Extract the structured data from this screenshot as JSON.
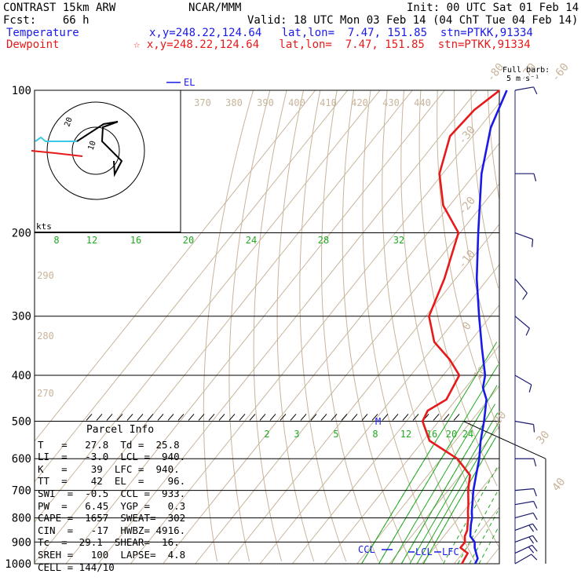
{
  "header": {
    "line1_left": "CONTRAST 15km ARW",
    "line1_center": "NCAR/MMM",
    "line1_right": "Init: 00 UTC Sat 01 Feb 14",
    "line2_left": "Fcst:    66 h",
    "line2_right": "Valid: 18 UTC Mon 03 Feb 14 (04 ChT Tue 04 Feb 14)",
    "temp_label": "Temperature",
    "temp_loc": "x,y=248.22,124.64   lat,lon=  7.47, 151.85  stn=PTKK,91334",
    "dew_label": "Dewpoint",
    "dew_loc": "☆ x,y=248.22,124.64   lat,lon=  7.47, 151.85  stn=PTKK,91334"
  },
  "barb_legend": {
    "line1": "Full barb:",
    "line2": "5 m s⁻¹"
  },
  "hodograph": {
    "units_label": "kts"
  },
  "markers": {
    "el": "EL",
    "m": "M",
    "ccl": "CCL",
    "lcl": "LCL",
    "lfc": "LFC"
  },
  "parcel_info": {
    "title": "Parcel Info",
    "rows": [
      "T   =   27.8  Td =  25.8",
      "LI  =   -3.0  LCL =  940.",
      "K   =    39  LFC =  940.",
      "TT  =    42  EL  =    96.",
      "SWI  =  -0.5  CCL =  933.",
      "PW  =   6.45  YGP =   0.3",
      "CAPE =  1657  SWEAT=  302",
      "CIN  =   -17  HWBZ= 4916.",
      "Tc  =  29.1  SHEAR=  16.",
      "SREH =   100  LAPSE=  4.8",
      "CELL = 144/10"
    ]
  },
  "chart_data": {
    "type": "line",
    "title": "",
    "y_axis": {
      "label": "",
      "scale": "log",
      "range_hPa": [
        1000,
        100
      ],
      "ticks": [
        100,
        200,
        300,
        400,
        500,
        600,
        700,
        800,
        900,
        1000
      ]
    },
    "x_axis": {
      "label": "",
      "skewed_isotherm_labels_C": [
        -80,
        -70,
        -60,
        -50,
        -40,
        -30,
        -20,
        -10,
        0,
        10,
        20,
        30,
        40
      ]
    },
    "dry_adiabat_labels_K": [
      270,
      280,
      290,
      370,
      380,
      390,
      400,
      410,
      420,
      430,
      440
    ],
    "mixing_ratio_labels_upper": [
      8,
      12,
      16,
      20,
      24,
      28,
      32
    ],
    "mixing_ratio_labels_lower": [
      2,
      3,
      5,
      8,
      12,
      16,
      20,
      24
    ],
    "series": [
      {
        "name": "Temperature",
        "color": "#1a1ae6",
        "points": [
          {
            "p": 1000,
            "t": 26.5
          },
          {
            "p": 975,
            "t": 26.0
          },
          {
            "p": 950,
            "t": 24.2
          },
          {
            "p": 925,
            "t": 22.4
          },
          {
            "p": 900,
            "t": 21.0
          },
          {
            "p": 875,
            "t": 18.2
          },
          {
            "p": 850,
            "t": 16.8
          },
          {
            "p": 825,
            "t": 15.4
          },
          {
            "p": 800,
            "t": 14.2
          },
          {
            "p": 775,
            "t": 12.5
          },
          {
            "p": 750,
            "t": 11.0
          },
          {
            "p": 700,
            "t": 7.8
          },
          {
            "p": 650,
            "t": 4.9
          },
          {
            "p": 600,
            "t": 1.8
          },
          {
            "p": 550,
            "t": -2.2
          },
          {
            "p": 500,
            "t": -6.0
          },
          {
            "p": 450,
            "t": -10.6
          },
          {
            "p": 425,
            "t": -14.6
          },
          {
            "p": 400,
            "t": -17.0
          },
          {
            "p": 350,
            "t": -24.8
          },
          {
            "p": 300,
            "t": -33.5
          },
          {
            "p": 250,
            "t": -43.5
          },
          {
            "p": 200,
            "t": -54.4
          },
          {
            "p": 150,
            "t": -68.0
          },
          {
            "p": 120,
            "t": -76.5
          },
          {
            "p": 100,
            "t": -80.8
          }
        ]
      },
      {
        "name": "Dewpoint",
        "color": "#e61a1a",
        "points": [
          {
            "p": 1000,
            "t": 22.4
          },
          {
            "p": 975,
            "t": 22.0
          },
          {
            "p": 950,
            "t": 21.6
          },
          {
            "p": 925,
            "t": 18.0
          },
          {
            "p": 900,
            "t": 18.0
          },
          {
            "p": 875,
            "t": 16.5
          },
          {
            "p": 850,
            "t": 15.8
          },
          {
            "p": 825,
            "t": 14.4
          },
          {
            "p": 800,
            "t": 13.0
          },
          {
            "p": 775,
            "t": 11.3
          },
          {
            "p": 750,
            "t": 9.8
          },
          {
            "p": 700,
            "t": 6.2
          },
          {
            "p": 650,
            "t": 3.0
          },
          {
            "p": 600,
            "t": -5.0
          },
          {
            "p": 550,
            "t": -18.0
          },
          {
            "p": 500,
            "t": -25.0
          },
          {
            "p": 475,
            "t": -26.0
          },
          {
            "p": 450,
            "t": -23.0
          },
          {
            "p": 400,
            "t": -25.0
          },
          {
            "p": 370,
            "t": -32.0
          },
          {
            "p": 340,
            "t": -41.0
          },
          {
            "p": 300,
            "t": -49.0
          },
          {
            "p": 250,
            "t": -53.5
          },
          {
            "p": 200,
            "t": -60.5
          },
          {
            "p": 175,
            "t": -72.0
          },
          {
            "p": 150,
            "t": -81.0
          },
          {
            "p": 125,
            "t": -87.0
          },
          {
            "p": 110,
            "t": -86.0
          },
          {
            "p": 100,
            "t": -83.0
          }
        ]
      }
    ],
    "wind_barbs_kts": [
      {
        "p": 1000,
        "dir": 60,
        "spd": 12
      },
      {
        "p": 950,
        "dir": 65,
        "spd": 15
      },
      {
        "p": 900,
        "dir": 70,
        "spd": 17
      },
      {
        "p": 850,
        "dir": 70,
        "spd": 15
      },
      {
        "p": 800,
        "dir": 75,
        "spd": 12
      },
      {
        "p": 750,
        "dir": 80,
        "spd": 10
      },
      {
        "p": 700,
        "dir": 85,
        "spd": 8
      },
      {
        "p": 600,
        "dir": 90,
        "spd": 6
      },
      {
        "p": 500,
        "dir": 100,
        "spd": 5
      },
      {
        "p": 400,
        "dir": 120,
        "spd": 7
      },
      {
        "p": 300,
        "dir": 130,
        "spd": 9
      },
      {
        "p": 250,
        "dir": 140,
        "spd": 8
      },
      {
        "p": 200,
        "dir": 110,
        "spd": 10
      },
      {
        "p": 150,
        "dir": 90,
        "spd": 7
      },
      {
        "p": 100,
        "dir": 80,
        "spd": 6
      }
    ]
  }
}
